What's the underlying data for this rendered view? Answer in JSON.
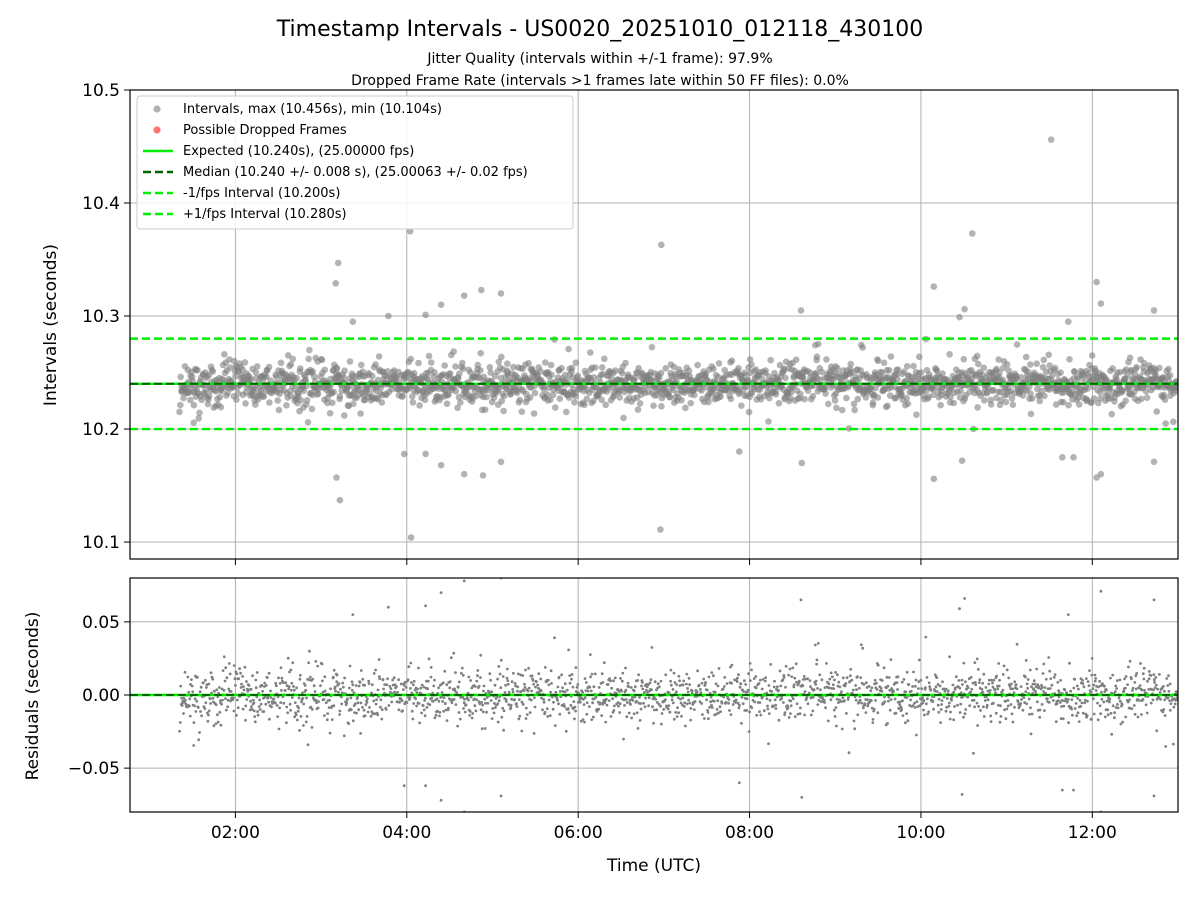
{
  "colors": {
    "scatter": "#808080",
    "dropped": "#ff5a5a",
    "expected": "#00ee00",
    "median": "#006400",
    "interval_bounds": "#00ee00",
    "grid": "#b0b0b0"
  },
  "chart_data": [
    {
      "type": "scatter",
      "title": "Timestamp Intervals - US0020_20251010_012118_430100",
      "subtitle_lines": [
        "Jitter Quality (intervals within +/-1 frame): 97.9%",
        "Dropped Frame Rate (intervals >1 frames late within 50 FF files): 0.0%"
      ],
      "xlabel": "",
      "ylabel": "Intervals (seconds)",
      "xlim_hours": [
        0.77,
        13.0
      ],
      "ylim": [
        10.085,
        10.5
      ],
      "yticks": [
        10.1,
        10.2,
        10.3,
        10.4,
        10.5
      ],
      "ytick_labels": [
        "10.1",
        "10.2",
        "10.3",
        "10.4",
        "10.5"
      ],
      "xticks_hours": [
        2,
        4,
        6,
        8,
        10,
        12
      ],
      "grid": true,
      "legend_position": "top-left",
      "legend": [
        {
          "label": "Intervals, max (10.456s), min (10.104s)",
          "style": "marker-grey"
        },
        {
          "label": "Possible Dropped Frames",
          "style": "marker-red"
        },
        {
          "label": "Expected (10.240s), (25.00000 fps)",
          "style": "solid-green"
        },
        {
          "label": "Median (10.240 +/- 0.008 s), (25.00063 +/- 0.02 fps)",
          "style": "dashed-darkgreen"
        },
        {
          "label": "-1/fps Interval (10.200s)",
          "style": "dashed-green"
        },
        {
          "label": "+1/fps Interval (10.280s)",
          "style": "dashed-green"
        }
      ],
      "reference_lines": {
        "expected": 10.24,
        "median": 10.24,
        "minus_one": 10.2,
        "plus_one": 10.28
      },
      "series": [
        {
          "name": "Intervals",
          "time_range_hours": [
            1.35,
            13.0
          ],
          "count": 2100,
          "center": 10.24,
          "spread": 0.009,
          "max": 10.456,
          "min": 10.104,
          "outliers": [
            {
              "x": 11.52,
              "y": 10.456
            },
            {
              "x": 4.04,
              "y": 10.375
            },
            {
              "x": 10.6,
              "y": 10.373
            },
            {
              "x": 6.97,
              "y": 10.363
            },
            {
              "x": 3.2,
              "y": 10.347
            },
            {
              "x": 12.05,
              "y": 10.33
            },
            {
              "x": 3.17,
              "y": 10.329
            },
            {
              "x": 10.15,
              "y": 10.326
            },
            {
              "x": 4.87,
              "y": 10.323
            },
            {
              "x": 5.1,
              "y": 10.32
            },
            {
              "x": 4.67,
              "y": 10.318
            },
            {
              "x": 12.1,
              "y": 10.311
            },
            {
              "x": 4.4,
              "y": 10.31
            },
            {
              "x": 8.6,
              "y": 10.305
            },
            {
              "x": 12.72,
              "y": 10.305
            },
            {
              "x": 10.51,
              "y": 10.306
            },
            {
              "x": 4.22,
              "y": 10.301
            },
            {
              "x": 10.45,
              "y": 10.299
            },
            {
              "x": 3.37,
              "y": 10.295
            },
            {
              "x": 11.72,
              "y": 10.295
            },
            {
              "x": 3.18,
              "y": 10.157
            },
            {
              "x": 3.22,
              "y": 10.137
            },
            {
              "x": 4.05,
              "y": 10.104
            },
            {
              "x": 6.96,
              "y": 10.111
            },
            {
              "x": 4.22,
              "y": 10.178
            },
            {
              "x": 3.97,
              "y": 10.178
            },
            {
              "x": 4.4,
              "y": 10.168
            },
            {
              "x": 4.67,
              "y": 10.16
            },
            {
              "x": 4.89,
              "y": 10.159
            },
            {
              "x": 5.1,
              "y": 10.171
            },
            {
              "x": 10.15,
              "y": 10.156
            },
            {
              "x": 12.05,
              "y": 10.157
            },
            {
              "x": 12.1,
              "y": 10.16
            },
            {
              "x": 12.72,
              "y": 10.171
            },
            {
              "x": 11.65,
              "y": 10.175
            },
            {
              "x": 11.78,
              "y": 10.175
            },
            {
              "x": 10.48,
              "y": 10.172
            },
            {
              "x": 8.61,
              "y": 10.17
            },
            {
              "x": 7.88,
              "y": 10.18
            }
          ]
        },
        {
          "name": "Possible Dropped Frames",
          "values": []
        }
      ]
    },
    {
      "type": "scatter",
      "title": "",
      "xlabel": "Time (UTC)",
      "ylabel": "Residuals (seconds)",
      "xlim_hours": [
        0.77,
        13.0
      ],
      "ylim": [
        -0.08,
        0.08
      ],
      "yticks": [
        -0.05,
        0.0,
        0.05
      ],
      "ytick_labels": [
        "−0.05",
        "0.00",
        "0.05"
      ],
      "xticks_hours": [
        2,
        4,
        6,
        8,
        10,
        12
      ],
      "xtick_labels": [
        "02:00",
        "04:00",
        "06:00",
        "08:00",
        "10:00",
        "12:00"
      ],
      "grid": true,
      "reference_lines": {
        "zero": 0.0
      },
      "series": [
        {
          "name": "Residuals",
          "time_range_hours": [
            1.35,
            13.0
          ],
          "count": 2100,
          "center": 0.0,
          "spread": 0.009,
          "max": 0.216,
          "min": -0.136
        }
      ]
    }
  ]
}
